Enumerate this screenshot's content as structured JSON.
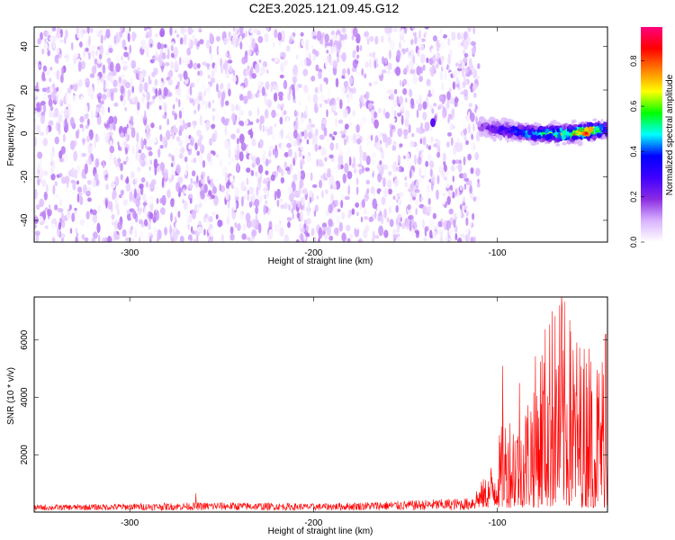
{
  "title": "C2E3.2025.121.09.45.G12",
  "chart_data": [
    {
      "type": "heatmap",
      "xlabel": "Height of straight line (km)",
      "ylabel": "Frequency (Hz)",
      "xlim": [
        -352,
        -40
      ],
      "ylim": [
        -50,
        49
      ],
      "xticks": [
        -300,
        -200,
        -100
      ],
      "yticks": [
        -40,
        -20,
        0,
        20,
        40
      ],
      "grid": false,
      "colorbar": {
        "label": "Normalized spectral amplitude",
        "range": [
          0,
          0.95
        ],
        "ticks": [
          0.0,
          0.2,
          0.4,
          0.6,
          0.8
        ],
        "colormap": [
          "#ffffff",
          "#d9b3ff",
          "#8a2be2",
          "#4000ff",
          "#0000ff",
          "#00ffff",
          "#00ff00",
          "#ffff00",
          "#ff8000",
          "#ff0000",
          "#ff0080"
        ]
      },
      "noise_region": {
        "x": [
          -352,
          -110
        ],
        "amplitude": [
          0.0,
          0.15
        ]
      },
      "signal_band": {
        "x": [
          -110,
          -40
        ],
        "center_frequency": [
          {
            "x": -110,
            "y": 3
          },
          {
            "x": -100,
            "y": 2
          },
          {
            "x": -90,
            "y": 1
          },
          {
            "x": -80,
            "y": 0
          },
          {
            "x": -70,
            "y": 0
          },
          {
            "x": -60,
            "y": 0
          },
          {
            "x": -50,
            "y": 1
          },
          {
            "x": -40,
            "y": 2
          }
        ],
        "peak_amplitude": [
          {
            "x": -110,
            "y": 0.2
          },
          {
            "x": -100,
            "y": 0.35
          },
          {
            "x": -90,
            "y": 0.45
          },
          {
            "x": -80,
            "y": 0.55
          },
          {
            "x": -70,
            "y": 0.65
          },
          {
            "x": -60,
            "y": 0.8
          },
          {
            "x": -50,
            "y": 0.95
          },
          {
            "x": -40,
            "y": 0.4
          }
        ],
        "isolated_blob": {
          "x": -135,
          "y": 5,
          "amplitude": 0.25
        }
      }
    },
    {
      "type": "line",
      "xlabel": "Height of straight line (km)",
      "ylabel": "SNR (10 * v/v)",
      "xlim": [
        -352,
        -40
      ],
      "ylim": [
        0,
        7500
      ],
      "xticks": [
        -300,
        -200,
        -100
      ],
      "yticks": [
        2000,
        4000,
        6000
      ],
      "grid": false,
      "series": [
        {
          "color": "#ff0000",
          "envelope": [
            {
              "x": -352,
              "y": 250
            },
            {
              "x": -300,
              "y": 300
            },
            {
              "x": -250,
              "y": 350
            },
            {
              "x": -200,
              "y": 300
            },
            {
              "x": -150,
              "y": 400
            },
            {
              "x": -115,
              "y": 500
            },
            {
              "x": -105,
              "y": 1200
            },
            {
              "x": -95,
              "y": 3500
            },
            {
              "x": -85,
              "y": 3800
            },
            {
              "x": -75,
              "y": 6500
            },
            {
              "x": -65,
              "y": 7500
            },
            {
              "x": -55,
              "y": 6000
            },
            {
              "x": -45,
              "y": 5500
            },
            {
              "x": -40,
              "y": 6200
            }
          ],
          "peaks": [
            {
              "x": -264,
              "y": 650
            },
            {
              "x": -97,
              "y": 5100
            },
            {
              "x": -88,
              "y": 4500
            },
            {
              "x": -70,
              "y": 7000
            },
            {
              "x": -65,
              "y": 7500
            },
            {
              "x": -60,
              "y": 6300
            },
            {
              "x": -50,
              "y": 5700
            },
            {
              "x": -41,
              "y": 6200
            }
          ]
        }
      ]
    }
  ]
}
